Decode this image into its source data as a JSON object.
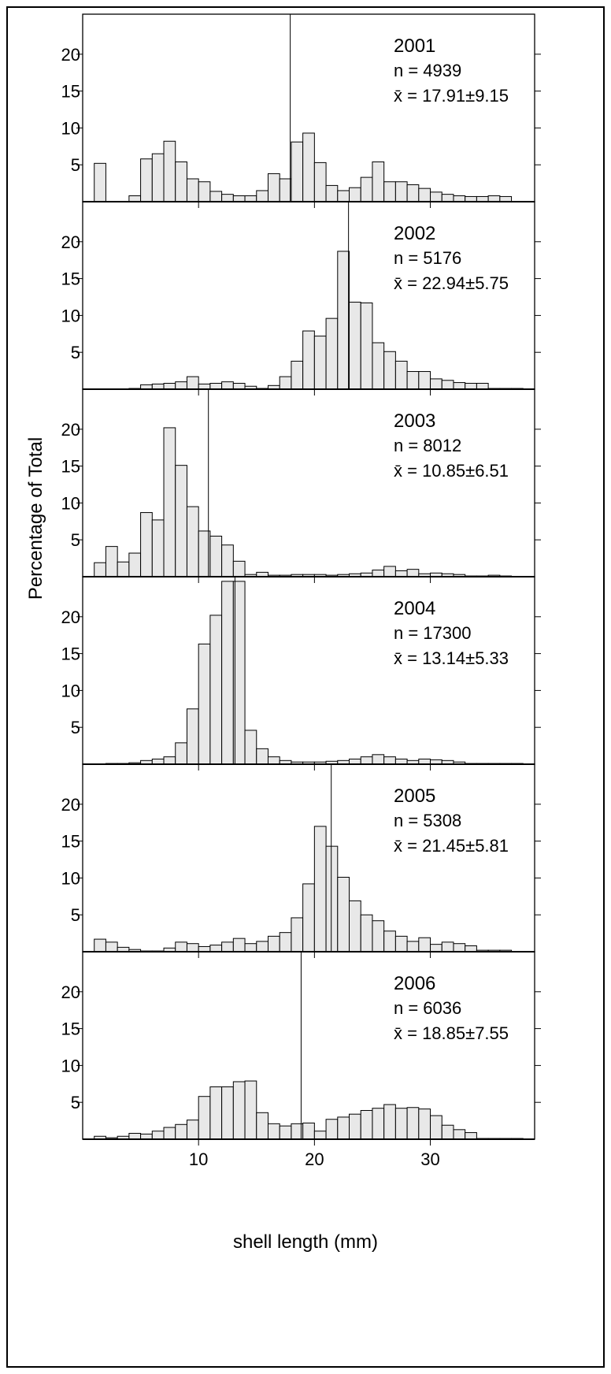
{
  "figure": {
    "ylabel": "Percentage of Total",
    "xlabel": "shell length (mm)"
  },
  "chart_data": [
    {
      "type": "bar",
      "year": "2001",
      "n_label": "n = 4939",
      "mean_label": "x̄ = 17.91±9.15",
      "mean": 17.91,
      "xlim": [
        0,
        39
      ],
      "ylim": [
        0,
        25
      ],
      "bin_width": 1,
      "bin_start": 1,
      "xticks": [
        "10",
        "20",
        "30"
      ],
      "yticks": [
        "5",
        "10",
        "15",
        "20"
      ],
      "values": [
        5.2,
        0,
        0,
        0.8,
        5.8,
        6.5,
        8.2,
        5.4,
        3.1,
        2.7,
        1.4,
        1.0,
        0.8,
        0.8,
        1.5,
        3.8,
        3.1,
        8.1,
        9.3,
        5.3,
        2.2,
        1.5,
        1.9,
        3.3,
        5.4,
        2.7,
        2.7,
        2.3,
        1.8,
        1.3,
        1.0,
        0.8,
        0.7,
        0.7,
        0.8,
        0.7
      ]
    },
    {
      "type": "bar",
      "year": "2002",
      "n_label": "n = 5176",
      "mean_label": "x̄ = 22.94±5.75",
      "mean": 22.94,
      "xlim": [
        0,
        39
      ],
      "ylim": [
        0,
        25
      ],
      "bin_width": 1,
      "bin_start": 1,
      "xticks": [
        "10",
        "20",
        "30"
      ],
      "yticks": [
        "5",
        "10",
        "15",
        "20"
      ],
      "values": [
        0,
        0,
        0,
        0.1,
        0.6,
        0.7,
        0.8,
        1.0,
        1.7,
        0.7,
        0.8,
        1.0,
        0.8,
        0.4,
        0.1,
        0.5,
        1.7,
        3.8,
        7.9,
        7.2,
        9.6,
        18.7,
        11.8,
        11.7,
        6.3,
        5.1,
        3.8,
        2.4,
        2.4,
        1.4,
        1.2,
        0.9,
        0.8,
        0.8,
        0.1,
        0.1,
        0.1
      ]
    },
    {
      "type": "bar",
      "year": "2003",
      "n_label": "n = 8012",
      "mean_label": "x̄ = 10.85±6.51",
      "mean": 10.85,
      "xlim": [
        0,
        39
      ],
      "ylim": [
        0,
        25
      ],
      "bin_width": 1,
      "bin_start": 1,
      "xticks": [
        "10",
        "20",
        "30"
      ],
      "yticks": [
        "5",
        "10",
        "15",
        "20"
      ],
      "values": [
        1.9,
        4.1,
        2.0,
        3.2,
        8.7,
        7.7,
        20.2,
        15.1,
        9.5,
        6.2,
        5.5,
        4.3,
        2.1,
        0.3,
        0.6,
        0.2,
        0.2,
        0.3,
        0.3,
        0.3,
        0.2,
        0.3,
        0.4,
        0.5,
        0.9,
        1.4,
        0.8,
        1.0,
        0.4,
        0.5,
        0.4,
        0.3,
        0.1,
        0.1,
        0.2,
        0.1
      ]
    },
    {
      "type": "bar",
      "year": "2004",
      "n_label": "n = 17300",
      "mean_label": "x̄ = 13.14±5.33",
      "mean": 13.14,
      "xlim": [
        0,
        39
      ],
      "ylim": [
        0,
        25
      ],
      "bin_width": 1,
      "bin_start": 1,
      "xticks": [
        "10",
        "20",
        "30"
      ],
      "yticks": [
        "5",
        "10",
        "15",
        "20"
      ],
      "values": [
        0,
        0.1,
        0.1,
        0.2,
        0.5,
        0.7,
        1.0,
        2.9,
        7.5,
        16.3,
        20.2,
        24.8,
        24.8,
        4.6,
        2.1,
        1.0,
        0.5,
        0.3,
        0.3,
        0.3,
        0.4,
        0.5,
        0.7,
        1.0,
        1.3,
        1.0,
        0.7,
        0.5,
        0.7,
        0.6,
        0.5,
        0.3,
        0.1,
        0.1,
        0.1,
        0.1,
        0.1
      ]
    },
    {
      "type": "bar",
      "year": "2005",
      "n_label": "n = 5308",
      "mean_label": "x̄ = 21.45±5.81",
      "mean": 21.45,
      "xlim": [
        0,
        39
      ],
      "ylim": [
        0,
        25
      ],
      "bin_width": 1,
      "bin_start": 1,
      "xticks": [
        "10",
        "20",
        "30"
      ],
      "yticks": [
        "5",
        "10",
        "15",
        "20"
      ],
      "values": [
        1.7,
        1.3,
        0.6,
        0.3,
        0.1,
        0.1,
        0.5,
        1.3,
        1.1,
        0.7,
        0.9,
        1.3,
        1.8,
        1.1,
        1.4,
        2.1,
        2.6,
        4.6,
        9.2,
        17.0,
        14.3,
        10.1,
        6.9,
        5.0,
        4.2,
        2.8,
        2.1,
        1.4,
        1.9,
        1.0,
        1.3,
        1.1,
        0.8,
        0.2,
        0.2,
        0.2
      ]
    },
    {
      "type": "bar",
      "year": "2006",
      "n_label": "n = 6036",
      "mean_label": "x̄ = 18.85±7.55",
      "mean": 18.85,
      "xlim": [
        0,
        39
      ],
      "ylim": [
        0,
        25
      ],
      "bin_width": 1,
      "bin_start": 1,
      "xticks": [
        "10",
        "20",
        "30"
      ],
      "yticks": [
        "5",
        "10",
        "15",
        "20"
      ],
      "values": [
        0.4,
        0.2,
        0.4,
        0.8,
        0.7,
        1.1,
        1.6,
        2.0,
        2.6,
        5.8,
        7.1,
        7.1,
        7.8,
        7.9,
        3.6,
        2.1,
        1.8,
        2.1,
        2.2,
        1.1,
        2.7,
        3.0,
        3.4,
        3.9,
        4.2,
        4.7,
        4.2,
        4.3,
        4.1,
        3.2,
        1.9,
        1.3,
        0.9,
        0.1,
        0.1,
        0.1,
        0.1
      ]
    }
  ]
}
